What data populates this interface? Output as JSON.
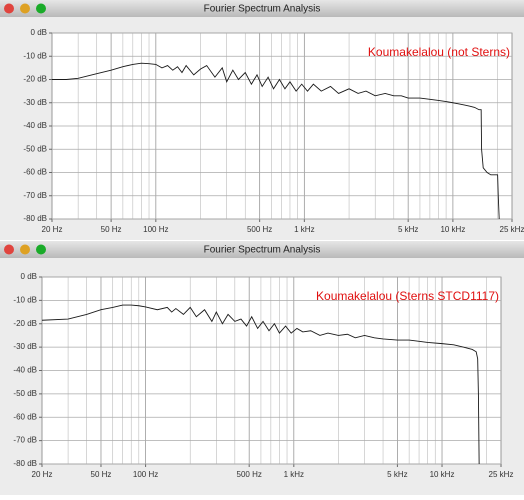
{
  "chart_data": [
    {
      "type": "line",
      "title": "Fourier Spectrum Analysis",
      "annotation": "Koumakelalou (not Sterns)",
      "annotation_color": "#e01010",
      "xscale": "log",
      "grid": true,
      "xlim": [
        20,
        25000
      ],
      "ylim": [
        -80,
        0
      ],
      "xticks": [
        {
          "value": 20,
          "label": "20 Hz"
        },
        {
          "value": 50,
          "label": "50 Hz"
        },
        {
          "value": 100,
          "label": "100 Hz"
        },
        {
          "value": 500,
          "label": "500 Hz"
        },
        {
          "value": 1000,
          "label": "1 kHz"
        },
        {
          "value": 5000,
          "label": "5 kHz"
        },
        {
          "value": 10000,
          "label": "10 kHz"
        },
        {
          "value": 25000,
          "label": "25 kHz"
        }
      ],
      "xminor": [
        30,
        40,
        60,
        70,
        80,
        90,
        200,
        300,
        400,
        600,
        700,
        800,
        900,
        2000,
        3000,
        4000,
        6000,
        7000,
        8000,
        9000,
        20000
      ],
      "yticks": [
        {
          "value": 0,
          "label": "0 dB"
        },
        {
          "value": -10,
          "label": "-10 dB"
        },
        {
          "value": -20,
          "label": "-20 dB"
        },
        {
          "value": -30,
          "label": "-30 dB"
        },
        {
          "value": -40,
          "label": "-40 dB"
        },
        {
          "value": -50,
          "label": "-50 dB"
        },
        {
          "value": -60,
          "label": "-60 dB"
        },
        {
          "value": -70,
          "label": "-70 dB"
        },
        {
          "value": -80,
          "label": "-80 dB"
        }
      ],
      "series": [
        {
          "color": "#1a1a1a",
          "x": [
            20,
            25,
            30,
            40,
            50,
            60,
            70,
            80,
            90,
            100,
            110,
            120,
            130,
            140,
            150,
            160,
            180,
            200,
            220,
            250,
            280,
            300,
            330,
            360,
            400,
            440,
            480,
            520,
            570,
            620,
            680,
            740,
            800,
            880,
            960,
            1050,
            1150,
            1300,
            1500,
            1700,
            2000,
            2300,
            2600,
            3000,
            3500,
            4000,
            4500,
            5000,
            6000,
            7000,
            8000,
            9000,
            10000,
            11000,
            12000,
            13000,
            14000,
            15000,
            15500,
            15600,
            16000,
            17000,
            18000,
            19000,
            20000,
            20200,
            20500
          ],
          "values": [
            -20,
            -20,
            -19.5,
            -17.5,
            -16,
            -14.5,
            -13.5,
            -13,
            -13.2,
            -13.5,
            -15,
            -14,
            -16,
            -14.5,
            -17,
            -14,
            -18,
            -15.5,
            -14,
            -19,
            -15,
            -21,
            -16,
            -20,
            -17,
            -22,
            -18,
            -23,
            -19,
            -24,
            -20,
            -24,
            -21,
            -25,
            -22,
            -25,
            -22,
            -25,
            -23,
            -26,
            -24,
            -26,
            -25,
            -27,
            -26,
            -27,
            -27,
            -28,
            -28,
            -28.5,
            -29,
            -29.5,
            -30,
            -30.5,
            -31,
            -31.5,
            -32,
            -33,
            -33,
            -50,
            -58,
            -60,
            -61,
            -61,
            -61,
            -70,
            -80
          ]
        }
      ]
    },
    {
      "type": "line",
      "title": "Fourier Spectrum Analysis",
      "annotation": "Koumakelalou (Sterns STCD1117)",
      "annotation_color": "#e01010",
      "xscale": "log",
      "grid": true,
      "xlim": [
        20,
        25000
      ],
      "ylim": [
        -80,
        0
      ],
      "xticks": [
        {
          "value": 20,
          "label": "20 Hz"
        },
        {
          "value": 50,
          "label": "50 Hz"
        },
        {
          "value": 100,
          "label": "100 Hz"
        },
        {
          "value": 500,
          "label": "500 Hz"
        },
        {
          "value": 1000,
          "label": "1 kHz"
        },
        {
          "value": 5000,
          "label": "5 kHz"
        },
        {
          "value": 10000,
          "label": "10 kHz"
        },
        {
          "value": 25000,
          "label": "25 kHz"
        }
      ],
      "xminor": [
        30,
        40,
        60,
        70,
        80,
        90,
        200,
        300,
        400,
        600,
        700,
        800,
        900,
        2000,
        3000,
        4000,
        6000,
        7000,
        8000,
        9000,
        20000
      ],
      "yticks": [
        {
          "value": 0,
          "label": "0 dB"
        },
        {
          "value": -10,
          "label": "-10 dB"
        },
        {
          "value": -20,
          "label": "-20 dB"
        },
        {
          "value": -30,
          "label": "-30 dB"
        },
        {
          "value": -40,
          "label": "-40 dB"
        },
        {
          "value": -50,
          "label": "-50 dB"
        },
        {
          "value": -60,
          "label": "-60 dB"
        },
        {
          "value": -70,
          "label": "-70 dB"
        },
        {
          "value": -80,
          "label": "-80 dB"
        }
      ],
      "series": [
        {
          "color": "#1a1a1a",
          "x": [
            20,
            30,
            40,
            50,
            60,
            70,
            80,
            90,
            100,
            120,
            140,
            150,
            160,
            180,
            200,
            220,
            250,
            280,
            300,
            330,
            360,
            400,
            440,
            480,
            520,
            570,
            620,
            680,
            740,
            800,
            880,
            960,
            1050,
            1150,
            1300,
            1500,
            1700,
            2000,
            2300,
            2600,
            3000,
            3500,
            4000,
            5000,
            6000,
            7000,
            8000,
            10000,
            12000,
            14000,
            16000,
            17000,
            17400,
            17600,
            17800
          ],
          "values": [
            -18.5,
            -18,
            -16,
            -14,
            -13,
            -12,
            -12,
            -12.3,
            -12.8,
            -14,
            -13,
            -15,
            -13.5,
            -16,
            -13,
            -17,
            -14,
            -19,
            -15,
            -20,
            -16,
            -19,
            -18,
            -21,
            -17,
            -22,
            -19,
            -23,
            -20,
            -24,
            -21,
            -24,
            -22,
            -23.5,
            -23,
            -25,
            -24,
            -25,
            -24.5,
            -26,
            -25,
            -26,
            -26.5,
            -27,
            -27,
            -27.5,
            -28,
            -28.5,
            -29,
            -30,
            -31,
            -32,
            -35,
            -50,
            -80
          ]
        }
      ]
    }
  ]
}
